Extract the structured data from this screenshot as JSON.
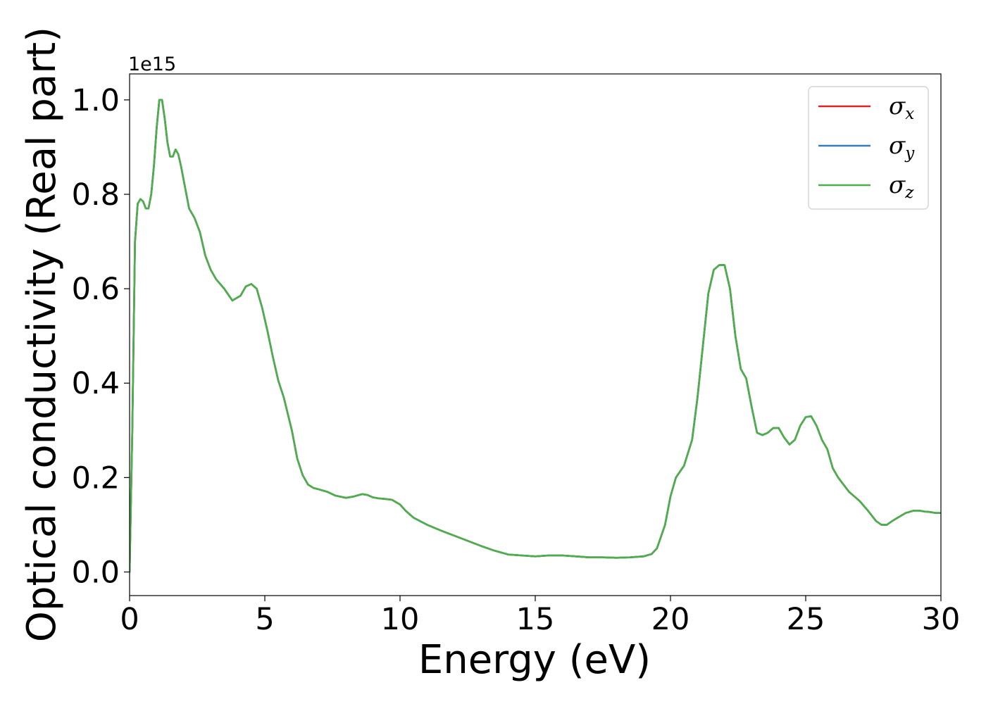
{
  "chart_data": {
    "type": "line",
    "title": "",
    "xlabel": "Energy (eV)",
    "ylabel": "Optical conductivity (Real part)",
    "y_offset_text": "1e15",
    "xlim": [
      0,
      30
    ],
    "ylim": [
      -0.05,
      1.055
    ],
    "xticks": [
      0,
      5,
      10,
      15,
      20,
      25,
      30
    ],
    "xtick_labels": [
      "0",
      "5",
      "10",
      "15",
      "20",
      "25",
      "30"
    ],
    "yticks": [
      0.0,
      0.2,
      0.4,
      0.6,
      0.8,
      1.0
    ],
    "ytick_labels": [
      "0.0",
      "0.2",
      "0.4",
      "0.6",
      "0.8",
      "1.0"
    ],
    "grid": false,
    "legend_placement": "top-right",
    "series": [
      {
        "name": "σx",
        "legend_symbol": "σ",
        "legend_subscript": "x",
        "color": "#d62728",
        "x": [
          0,
          0.1,
          0.2,
          0.3,
          0.4,
          0.5,
          0.6,
          0.7,
          0.8,
          0.9,
          1.0,
          1.1,
          1.2,
          1.3,
          1.4,
          1.5,
          1.6,
          1.7,
          1.8,
          1.9,
          2.0,
          2.1,
          2.2,
          2.4,
          2.6,
          2.8,
          3.0,
          3.2,
          3.5,
          3.8,
          4.1,
          4.3,
          4.5,
          4.7,
          4.9,
          5.1,
          5.3,
          5.5,
          5.7,
          6.0,
          6.2,
          6.4,
          6.6,
          6.8,
          7.0,
          7.3,
          7.6,
          8.0,
          8.3,
          8.6,
          8.8,
          9.0,
          9.2,
          9.4,
          9.7,
          10.0,
          10.2,
          10.5,
          11.0,
          11.5,
          12.0,
          12.5,
          13.0,
          13.5,
          14.0,
          14.5,
          15.0,
          15.5,
          16.0,
          16.5,
          17.0,
          17.5,
          18.0,
          18.5,
          19.0,
          19.3,
          19.5,
          19.8,
          20.0,
          20.2,
          20.5,
          20.8,
          21.0,
          21.2,
          21.4,
          21.6,
          21.8,
          22.0,
          22.2,
          22.4,
          22.6,
          22.8,
          23.0,
          23.2,
          23.4,
          23.6,
          23.8,
          24.0,
          24.2,
          24.4,
          24.6,
          24.8,
          25.0,
          25.2,
          25.4,
          25.6,
          25.8,
          26.0,
          26.2,
          26.4,
          26.6,
          26.8,
          27.0,
          27.3,
          27.6,
          27.8,
          28.0,
          28.2,
          28.4,
          28.7,
          29.0,
          29.2,
          29.4,
          29.6,
          29.8,
          30.0
        ],
        "y": [
          0.0,
          0.3,
          0.7,
          0.78,
          0.79,
          0.785,
          0.77,
          0.77,
          0.8,
          0.86,
          0.94,
          1.0,
          1.0,
          0.96,
          0.91,
          0.88,
          0.88,
          0.895,
          0.885,
          0.86,
          0.83,
          0.8,
          0.77,
          0.75,
          0.72,
          0.67,
          0.64,
          0.62,
          0.6,
          0.575,
          0.585,
          0.605,
          0.61,
          0.6,
          0.56,
          0.51,
          0.455,
          0.405,
          0.37,
          0.3,
          0.24,
          0.205,
          0.185,
          0.178,
          0.175,
          0.17,
          0.162,
          0.157,
          0.16,
          0.165,
          0.163,
          0.158,
          0.156,
          0.155,
          0.153,
          0.143,
          0.13,
          0.115,
          0.1,
          0.088,
          0.077,
          0.066,
          0.055,
          0.045,
          0.037,
          0.035,
          0.033,
          0.035,
          0.035,
          0.033,
          0.031,
          0.031,
          0.03,
          0.031,
          0.033,
          0.038,
          0.05,
          0.1,
          0.16,
          0.2,
          0.225,
          0.28,
          0.37,
          0.48,
          0.59,
          0.64,
          0.65,
          0.65,
          0.6,
          0.5,
          0.43,
          0.41,
          0.35,
          0.295,
          0.29,
          0.295,
          0.305,
          0.305,
          0.285,
          0.27,
          0.28,
          0.31,
          0.328,
          0.33,
          0.31,
          0.28,
          0.26,
          0.22,
          0.2,
          0.185,
          0.17,
          0.16,
          0.15,
          0.13,
          0.108,
          0.1,
          0.1,
          0.108,
          0.115,
          0.125,
          0.13,
          0.13,
          0.128,
          0.127,
          0.125,
          0.125
        ]
      },
      {
        "name": "σy",
        "legend_symbol": "σ",
        "legend_subscript": "y",
        "color": "#377eb8",
        "x": [
          0,
          0.1,
          0.2,
          0.3,
          0.4,
          0.5,
          0.6,
          0.7,
          0.8,
          0.9,
          1.0,
          1.1,
          1.2,
          1.3,
          1.4,
          1.5,
          1.6,
          1.7,
          1.8,
          1.9,
          2.0,
          2.1,
          2.2,
          2.4,
          2.6,
          2.8,
          3.0,
          3.2,
          3.5,
          3.8,
          4.1,
          4.3,
          4.5,
          4.7,
          4.9,
          5.1,
          5.3,
          5.5,
          5.7,
          6.0,
          6.2,
          6.4,
          6.6,
          6.8,
          7.0,
          7.3,
          7.6,
          8.0,
          8.3,
          8.6,
          8.8,
          9.0,
          9.2,
          9.4,
          9.7,
          10.0,
          10.2,
          10.5,
          11.0,
          11.5,
          12.0,
          12.5,
          13.0,
          13.5,
          14.0,
          14.5,
          15.0,
          15.5,
          16.0,
          16.5,
          17.0,
          17.5,
          18.0,
          18.5,
          19.0,
          19.3,
          19.5,
          19.8,
          20.0,
          20.2,
          20.5,
          20.8,
          21.0,
          21.2,
          21.4,
          21.6,
          21.8,
          22.0,
          22.2,
          22.4,
          22.6,
          22.8,
          23.0,
          23.2,
          23.4,
          23.6,
          23.8,
          24.0,
          24.2,
          24.4,
          24.6,
          24.8,
          25.0,
          25.2,
          25.4,
          25.6,
          25.8,
          26.0,
          26.2,
          26.4,
          26.6,
          26.8,
          27.0,
          27.3,
          27.6,
          27.8,
          28.0,
          28.2,
          28.4,
          28.7,
          29.0,
          29.2,
          29.4,
          29.6,
          29.8,
          30.0
        ],
        "y": [
          0.0,
          0.3,
          0.7,
          0.78,
          0.79,
          0.785,
          0.77,
          0.77,
          0.8,
          0.86,
          0.94,
          1.0,
          1.0,
          0.96,
          0.91,
          0.88,
          0.88,
          0.895,
          0.885,
          0.86,
          0.83,
          0.8,
          0.77,
          0.75,
          0.72,
          0.67,
          0.64,
          0.62,
          0.6,
          0.575,
          0.585,
          0.605,
          0.61,
          0.6,
          0.56,
          0.51,
          0.455,
          0.405,
          0.37,
          0.3,
          0.24,
          0.205,
          0.185,
          0.178,
          0.175,
          0.17,
          0.162,
          0.157,
          0.16,
          0.165,
          0.163,
          0.158,
          0.156,
          0.155,
          0.153,
          0.143,
          0.13,
          0.115,
          0.1,
          0.088,
          0.077,
          0.066,
          0.055,
          0.045,
          0.037,
          0.035,
          0.033,
          0.035,
          0.035,
          0.033,
          0.031,
          0.031,
          0.03,
          0.031,
          0.033,
          0.038,
          0.05,
          0.1,
          0.16,
          0.2,
          0.225,
          0.28,
          0.37,
          0.48,
          0.59,
          0.64,
          0.65,
          0.65,
          0.6,
          0.5,
          0.43,
          0.41,
          0.35,
          0.295,
          0.29,
          0.295,
          0.305,
          0.305,
          0.285,
          0.27,
          0.28,
          0.31,
          0.328,
          0.33,
          0.31,
          0.28,
          0.26,
          0.22,
          0.2,
          0.185,
          0.17,
          0.16,
          0.15,
          0.13,
          0.108,
          0.1,
          0.1,
          0.108,
          0.115,
          0.125,
          0.13,
          0.13,
          0.128,
          0.127,
          0.125,
          0.125
        ]
      },
      {
        "name": "σz",
        "legend_symbol": "σ",
        "legend_subscript": "z",
        "color": "#4daf4a",
        "x": [
          0,
          0.1,
          0.2,
          0.3,
          0.4,
          0.5,
          0.6,
          0.7,
          0.8,
          0.9,
          1.0,
          1.1,
          1.2,
          1.3,
          1.4,
          1.5,
          1.6,
          1.7,
          1.8,
          1.9,
          2.0,
          2.1,
          2.2,
          2.4,
          2.6,
          2.8,
          3.0,
          3.2,
          3.5,
          3.8,
          4.1,
          4.3,
          4.5,
          4.7,
          4.9,
          5.1,
          5.3,
          5.5,
          5.7,
          6.0,
          6.2,
          6.4,
          6.6,
          6.8,
          7.0,
          7.3,
          7.6,
          8.0,
          8.3,
          8.6,
          8.8,
          9.0,
          9.2,
          9.4,
          9.7,
          10.0,
          10.2,
          10.5,
          11.0,
          11.5,
          12.0,
          12.5,
          13.0,
          13.5,
          14.0,
          14.5,
          15.0,
          15.5,
          16.0,
          16.5,
          17.0,
          17.5,
          18.0,
          18.5,
          19.0,
          19.3,
          19.5,
          19.8,
          20.0,
          20.2,
          20.5,
          20.8,
          21.0,
          21.2,
          21.4,
          21.6,
          21.8,
          22.0,
          22.2,
          22.4,
          22.6,
          22.8,
          23.0,
          23.2,
          23.4,
          23.6,
          23.8,
          24.0,
          24.2,
          24.4,
          24.6,
          24.8,
          25.0,
          25.2,
          25.4,
          25.6,
          25.8,
          26.0,
          26.2,
          26.4,
          26.6,
          26.8,
          27.0,
          27.3,
          27.6,
          27.8,
          28.0,
          28.2,
          28.4,
          28.7,
          29.0,
          29.2,
          29.4,
          29.6,
          29.8,
          30.0
        ],
        "y": [
          0.0,
          0.3,
          0.7,
          0.78,
          0.79,
          0.785,
          0.77,
          0.77,
          0.8,
          0.86,
          0.94,
          1.0,
          1.0,
          0.96,
          0.91,
          0.88,
          0.88,
          0.895,
          0.885,
          0.86,
          0.83,
          0.8,
          0.77,
          0.75,
          0.72,
          0.67,
          0.64,
          0.62,
          0.6,
          0.575,
          0.585,
          0.605,
          0.61,
          0.6,
          0.56,
          0.51,
          0.455,
          0.405,
          0.37,
          0.3,
          0.24,
          0.205,
          0.185,
          0.178,
          0.175,
          0.17,
          0.162,
          0.157,
          0.16,
          0.165,
          0.163,
          0.158,
          0.156,
          0.155,
          0.153,
          0.143,
          0.13,
          0.115,
          0.1,
          0.088,
          0.077,
          0.066,
          0.055,
          0.045,
          0.037,
          0.035,
          0.033,
          0.035,
          0.035,
          0.033,
          0.031,
          0.031,
          0.03,
          0.031,
          0.033,
          0.038,
          0.05,
          0.1,
          0.16,
          0.2,
          0.225,
          0.28,
          0.37,
          0.48,
          0.59,
          0.64,
          0.65,
          0.65,
          0.6,
          0.5,
          0.43,
          0.41,
          0.35,
          0.295,
          0.29,
          0.295,
          0.305,
          0.305,
          0.285,
          0.27,
          0.28,
          0.31,
          0.328,
          0.33,
          0.31,
          0.28,
          0.26,
          0.22,
          0.2,
          0.185,
          0.17,
          0.16,
          0.15,
          0.13,
          0.108,
          0.1,
          0.1,
          0.108,
          0.115,
          0.125,
          0.13,
          0.13,
          0.128,
          0.127,
          0.125,
          0.125
        ]
      }
    ]
  }
}
